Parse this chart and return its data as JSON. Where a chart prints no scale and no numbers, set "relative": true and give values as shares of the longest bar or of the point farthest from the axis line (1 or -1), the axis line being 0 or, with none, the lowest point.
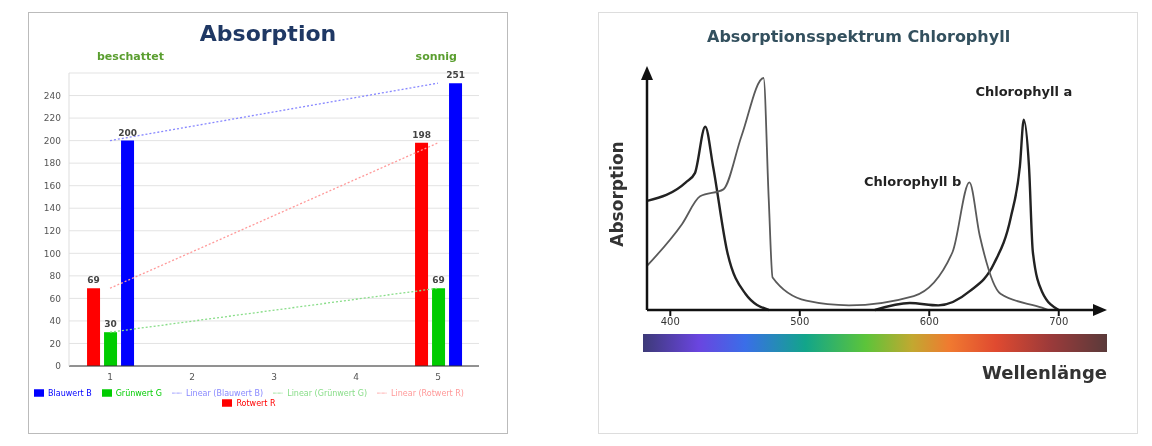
{
  "chart_data": [
    {
      "type": "bar",
      "title": "Absorption",
      "annotations": [
        "beschattet",
        "sonnig"
      ],
      "categories": [
        "1",
        "2",
        "3",
        "4",
        "5"
      ],
      "series": [
        {
          "name": "Rotwert R",
          "color": "#ff0000",
          "values": [
            69,
            null,
            null,
            null,
            198
          ],
          "value_labels": [
            "69",
            null,
            null,
            null,
            "198"
          ]
        },
        {
          "name": "Grünwert G",
          "color": "#00cc00",
          "values": [
            30,
            null,
            null,
            null,
            69
          ],
          "value_labels": [
            "30",
            null,
            null,
            null,
            "69"
          ]
        },
        {
          "name": "Blauwert B",
          "color": "#0000ff",
          "values": [
            200,
            null,
            null,
            null,
            251
          ],
          "value_labels": [
            "200",
            null,
            null,
            null,
            "251"
          ]
        },
        {
          "name": "Linear (Rotwert R)",
          "type": "line",
          "color": "#ff9999",
          "line_style": "dotted",
          "x": [
            "1",
            "5"
          ],
          "values": [
            69,
            198
          ]
        },
        {
          "name": "Linear (Grünwert G)",
          "type": "line",
          "color": "#88dd88",
          "line_style": "dotted",
          "x": [
            "1",
            "5"
          ],
          "values": [
            30,
            69
          ]
        },
        {
          "name": "Linear (Blauwert B)",
          "type": "line",
          "color": "#8888ff",
          "line_style": "dotted",
          "x": [
            "1",
            "5"
          ],
          "values": [
            200,
            251
          ]
        }
      ],
      "ylim": [
        0,
        260
      ],
      "yticks": [
        0,
        20,
        40,
        60,
        80,
        100,
        120,
        140,
        160,
        180,
        200,
        220,
        240
      ],
      "grid": "y",
      "legend": "bottom"
    },
    {
      "type": "line",
      "title": "Absorptionsspektrum Chlorophyll",
      "xlabel": "Wellenlänge",
      "ylabel": "Absorption",
      "relative": true,
      "xlim": [
        382,
        728
      ],
      "xticks": [
        400,
        500,
        600,
        700
      ],
      "tick_labels": "x",
      "series": [
        {
          "name": "Chlorophyll a",
          "color": "#222222",
          "x": [
            382,
            412,
            419,
            427,
            433,
            444,
            458,
            476,
            517,
            558,
            585,
            607,
            631,
            650,
            663,
            670,
            673,
            677,
            680,
            687,
            700
          ],
          "values": [
            0.47,
            0.55,
            0.59,
            0.79,
            0.62,
            0.25,
            0.07,
            0,
            null,
            0,
            0.03,
            0.02,
            0.08,
            0.2,
            0.4,
            0.62,
            0.82,
            0.62,
            0.25,
            0.08,
            0
          ]
        },
        {
          "name": "Chlorophyll b",
          "color": "#5a5a5a",
          "x": [
            382,
            409,
            423,
            441,
            455,
            472,
            476,
            479,
            505,
            538,
            588,
            618,
            631,
            639,
            655,
            687,
            692
          ],
          "values": [
            0.19,
            0.37,
            0.49,
            0.52,
            0.75,
            1,
            0.48,
            0.14,
            0.04,
            0.02,
            0.06,
            0.25,
            0.55,
            0.32,
            0.07,
            0.01,
            0
          ]
        }
      ]
    }
  ]
}
